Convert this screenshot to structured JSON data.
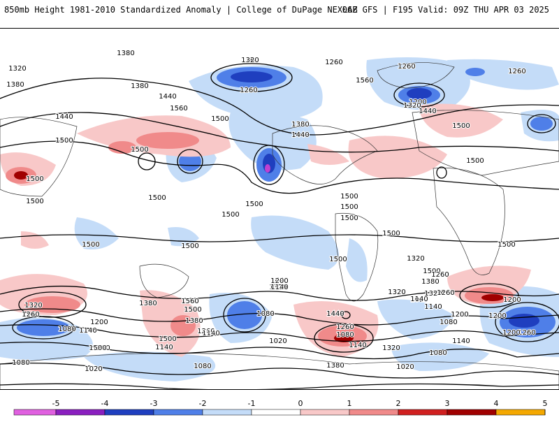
{
  "header": {
    "title": "850mb Height 1981-2010 Standardized Anomaly | College of DuPage NEXLAB",
    "run_info": "06Z GFS | F195 Valid: 09Z THU APR 03 2025"
  },
  "colorbar": {
    "ticks": [
      "-5",
      "-4",
      "-3",
      "-2",
      "-1",
      "0",
      "1",
      "2",
      "3",
      "4",
      "5"
    ],
    "colors": [
      "#e060e0",
      "#8a1fbf",
      "#1f3fbf",
      "#4f7fe8",
      "#c4dcf8",
      "#ffffff",
      "#f8c8c8",
      "#f08a8a",
      "#d02020",
      "#a00000",
      "#f4a800"
    ]
  },
  "contour_labels": [
    "1320",
    "1260",
    "1320",
    "1380",
    "1380",
    "1440",
    "1440",
    "1560",
    "1500",
    "1500",
    "1500",
    "1500",
    "1500",
    "1500",
    "1260",
    "1260",
    "1260",
    "1260",
    "1200",
    "1320",
    "1380",
    "1440",
    "1560",
    "1440",
    "1500",
    "1500",
    "1500",
    "1500",
    "1500",
    "1500",
    "1500",
    "1500",
    "1500",
    "1500",
    "1500",
    "1500",
    "1500",
    "1440",
    "1320",
    "1380",
    "1320",
    "1320",
    "1260",
    "1200",
    "1140",
    "1080",
    "1560",
    "1500",
    "1380",
    "1260",
    "1200",
    "1140",
    "1080",
    "1200",
    "1140",
    "1080",
    "1020",
    "1380",
    "1320",
    "1260",
    "1200",
    "1080",
    "1140",
    "1080",
    "1260",
    "1320",
    "1140",
    "1200",
    "1260",
    "1200",
    "1140",
    "1080",
    "1020",
    "1080",
    "1140",
    "1200",
    "1260",
    "1380",
    "1320",
    "1440",
    "1500",
    "1500",
    "1140",
    "1080",
    "1020",
    "1380",
    "1320"
  ]
}
